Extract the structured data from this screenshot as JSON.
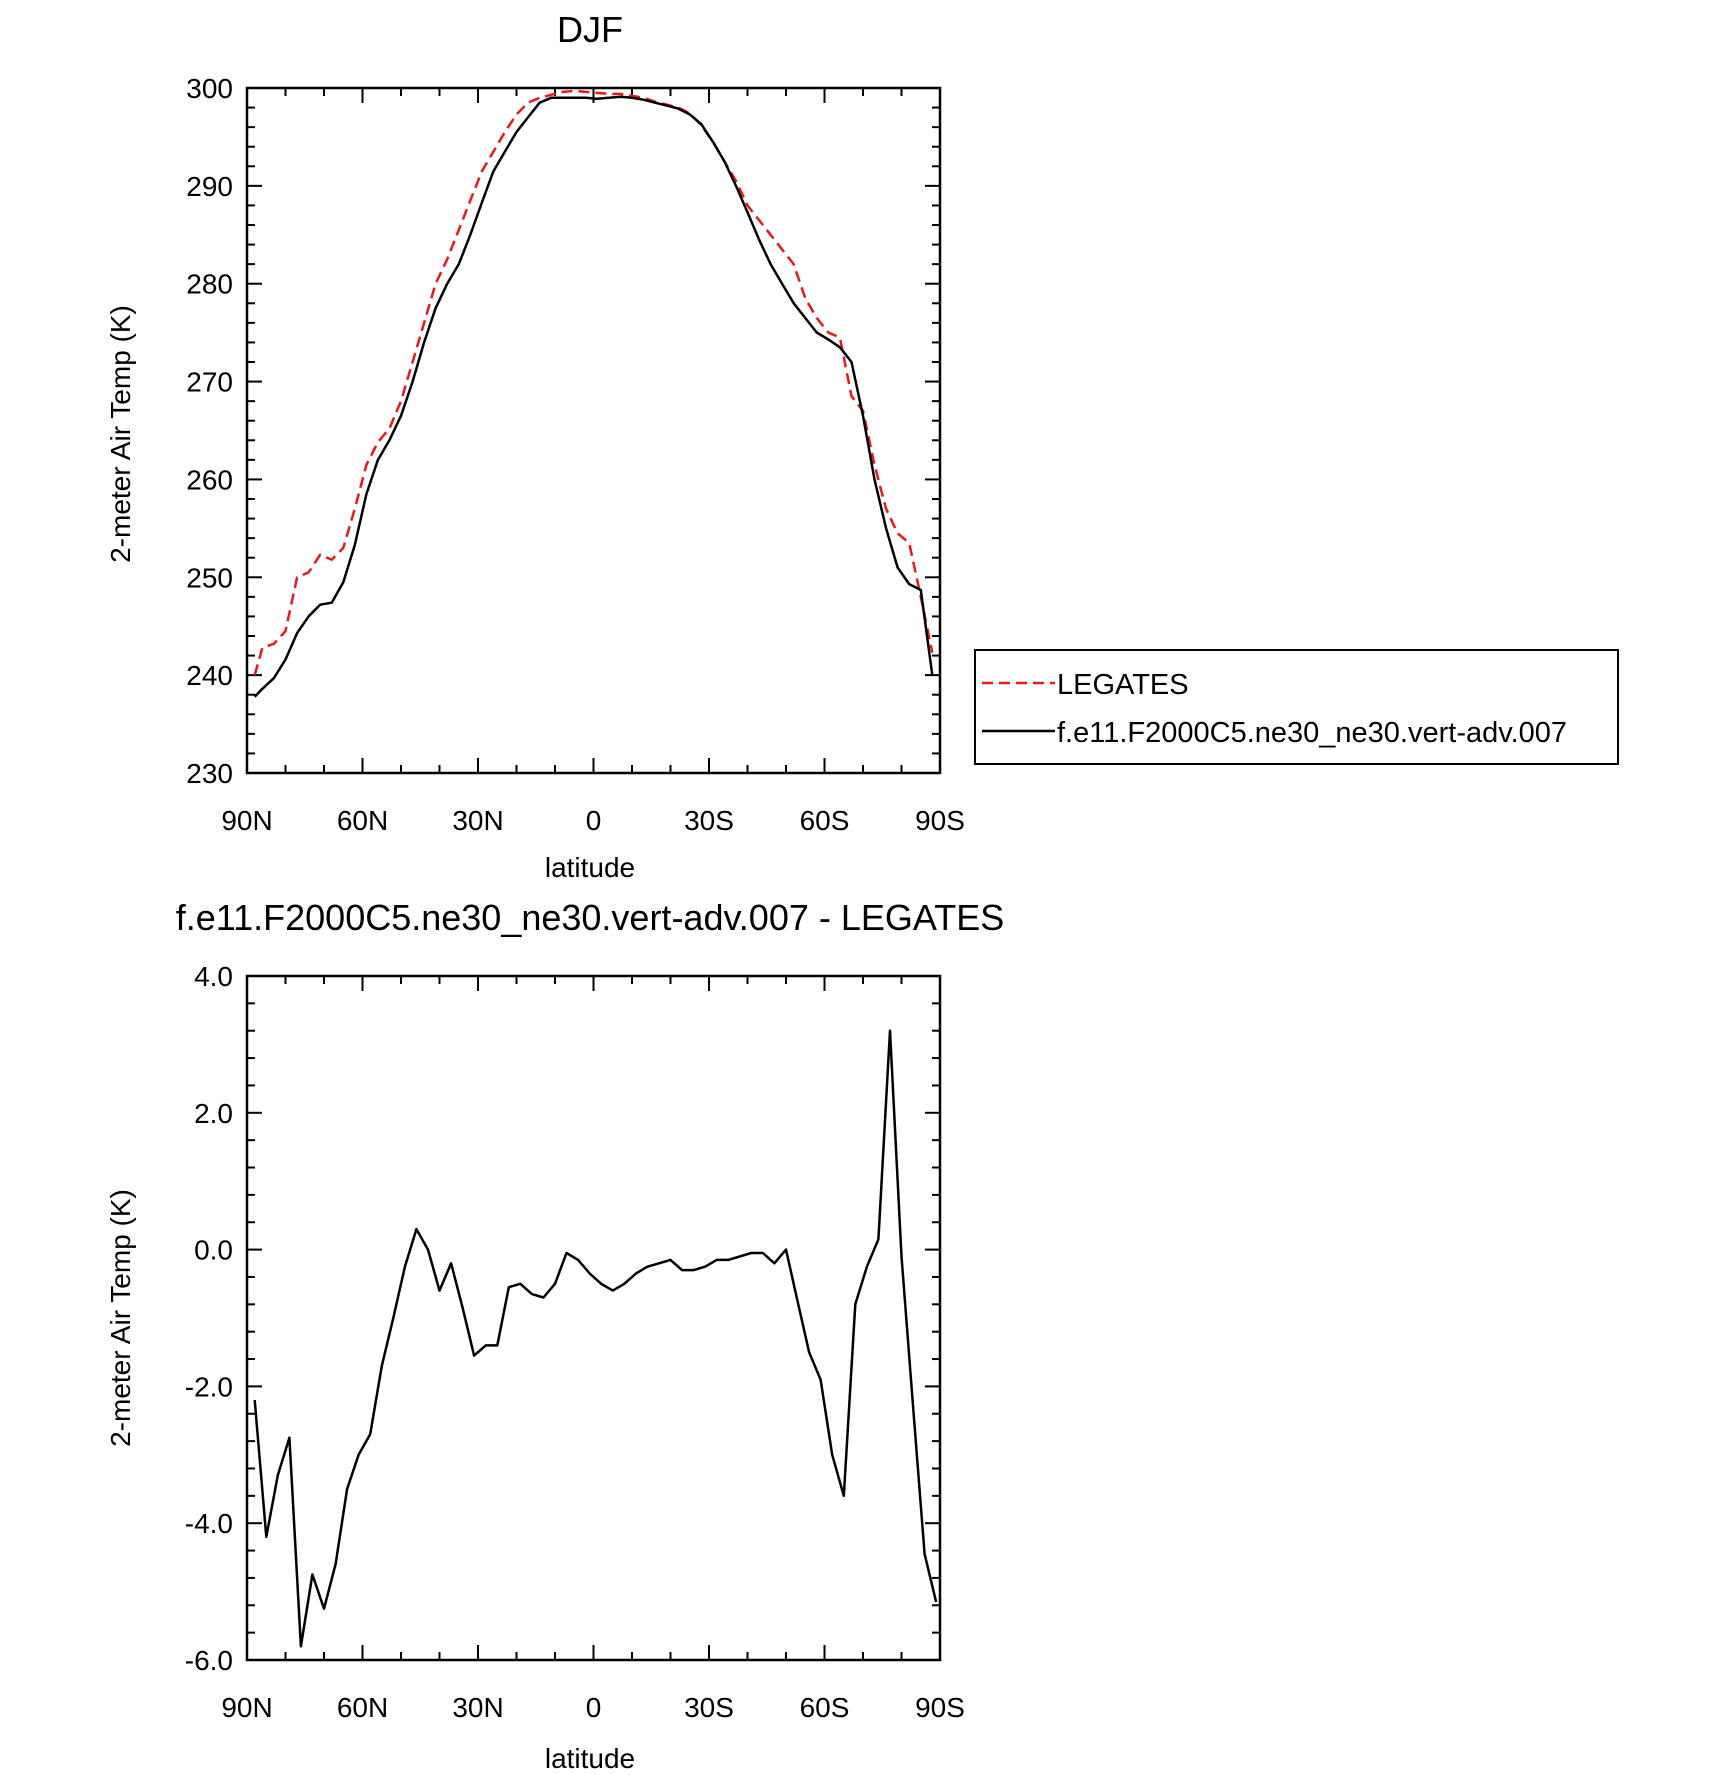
{
  "chart_data": [
    {
      "type": "line",
      "title": "DJF",
      "xlabel": "latitude",
      "ylabel": "2-meter Air Temp (K)",
      "xlim": [
        90,
        -90
      ],
      "ylim": [
        230,
        300
      ],
      "x_tick_values": [
        90,
        60,
        30,
        0,
        -30,
        -60,
        -90
      ],
      "x_tick_labels": [
        "90N",
        "60N",
        "30N",
        "0",
        "30S",
        "60S",
        "90S"
      ],
      "y_tick_values": [
        230,
        240,
        250,
        260,
        270,
        280,
        290,
        300
      ],
      "y_tick_labels": [
        "230",
        "240",
        "250",
        "260",
        "270",
        "280",
        "290",
        "300"
      ],
      "grid": false,
      "legend": "right",
      "series": [
        {
          "name": "LEGATES",
          "color": "#e41a1c",
          "style": "dashed",
          "x": [
            88,
            86,
            83,
            80,
            77,
            74,
            71,
            68,
            65,
            62,
            59,
            56,
            53,
            50,
            47,
            44,
            41,
            38,
            35,
            32,
            29,
            26,
            23,
            20,
            17,
            14,
            11,
            8,
            5,
            2,
            -1,
            -4,
            -7,
            -10,
            -13,
            -16,
            -19,
            -22,
            -25,
            -28,
            -31,
            -34,
            -37,
            -40,
            -43,
            -46,
            -49,
            -52,
            -55,
            -58,
            -61,
            -64,
            -67,
            -70,
            -73,
            -76,
            -79,
            -82,
            -85,
            -88
          ],
          "values": [
            240,
            242.8,
            243.2,
            244.5,
            250.0,
            250.5,
            252.3,
            251.8,
            253.0,
            257.0,
            261.5,
            263.8,
            265.2,
            268.0,
            272.0,
            276.0,
            280.0,
            282.5,
            285.5,
            288.5,
            291.5,
            293.5,
            295.5,
            297.3,
            298.5,
            299.0,
            299.3,
            299.6,
            299.7,
            299.6,
            299.5,
            299.4,
            299.4,
            299.2,
            299.0,
            298.6,
            298.3,
            298.0,
            297.4,
            296.2,
            294.5,
            292.5,
            290.5,
            288.0,
            286.5,
            285.0,
            283.5,
            282.0,
            278.5,
            276.5,
            275.0,
            274.5,
            268.5,
            267.0,
            261.5,
            257.0,
            254.5,
            253.5,
            248.0,
            242.3
          ]
        },
        {
          "name": "f.e11.F2000C5.ne30_ne30.vert-adv.007",
          "color": "#000000",
          "style": "solid",
          "x": [
            88,
            86,
            83,
            80,
            77,
            74,
            71,
            68,
            65,
            62,
            59,
            56,
            53,
            50,
            47,
            44,
            41,
            38,
            35,
            32,
            29,
            26,
            23,
            20,
            17,
            14,
            11,
            8,
            5,
            2,
            -1,
            -4,
            -7,
            -10,
            -13,
            -16,
            -19,
            -22,
            -25,
            -28,
            -31,
            -34,
            -37,
            -40,
            -43,
            -46,
            -49,
            -52,
            -55,
            -58,
            -61,
            -64,
            -67,
            -70,
            -73,
            -76,
            -79,
            -82,
            -85,
            -88
          ],
          "values": [
            237.8,
            238.6,
            239.7,
            241.6,
            244.3,
            246.0,
            247.2,
            247.4,
            249.5,
            253.3,
            258.5,
            262.0,
            264.0,
            266.5,
            270.0,
            274.0,
            277.5,
            280.0,
            282.0,
            285.0,
            288.3,
            291.5,
            293.5,
            295.5,
            297.0,
            298.5,
            299.0,
            299.0,
            299.0,
            299.0,
            298.9,
            299.0,
            299.1,
            299.0,
            298.8,
            298.5,
            298.2,
            297.9,
            297.3,
            296.3,
            294.5,
            292.5,
            290.0,
            287.3,
            284.5,
            282.0,
            280.0,
            278.0,
            276.5,
            275.0,
            274.3,
            273.5,
            272.0,
            266.5,
            260.0,
            255.0,
            251.0,
            249.3,
            248.7,
            240.0
          ]
        }
      ]
    },
    {
      "type": "line",
      "title": "f.e11.F2000C5.ne30_ne30.vert-adv.007 - LEGATES",
      "xlabel": "latitude",
      "ylabel": "2-meter Air Temp (K)",
      "xlim": [
        90,
        -90
      ],
      "ylim": [
        -6,
        4
      ],
      "x_tick_values": [
        90,
        60,
        30,
        0,
        -30,
        -60,
        -90
      ],
      "x_tick_labels": [
        "90N",
        "60N",
        "30N",
        "0",
        "30S",
        "60S",
        "90S"
      ],
      "y_tick_values": [
        -6,
        -4,
        -2,
        0,
        2,
        4
      ],
      "y_tick_labels": [
        "-6.0",
        "-4.0",
        "-2.0",
        "0.0",
        "2.0",
        "4.0"
      ],
      "grid": false,
      "series": [
        {
          "color": "#000000",
          "style": "solid",
          "x": [
            88,
            85,
            82,
            79,
            76,
            73,
            70,
            67,
            64,
            61,
            58,
            55,
            52,
            49,
            46,
            43,
            40,
            37,
            34,
            31,
            28,
            25,
            22,
            19,
            16,
            13,
            10,
            7,
            4,
            1,
            -2,
            -5,
            -8,
            -11,
            -14,
            -17,
            -20,
            -23,
            -26,
            -29,
            -32,
            -35,
            -38,
            -41,
            -44,
            -47,
            -50,
            -53,
            -56,
            -59,
            -62,
            -65,
            -68,
            -71,
            -74,
            -77,
            -80,
            -83,
            -86,
            -89
          ],
          "values": [
            -2.2,
            -4.2,
            -3.3,
            -2.75,
            -5.8,
            -4.75,
            -5.25,
            -4.6,
            -3.5,
            -3.0,
            -2.7,
            -1.7,
            -1.0,
            -0.25,
            0.3,
            0.0,
            -0.6,
            -0.2,
            -0.85,
            -1.55,
            -1.4,
            -1.4,
            -0.55,
            -0.5,
            -0.65,
            -0.7,
            -0.5,
            -0.05,
            -0.15,
            -0.35,
            -0.5,
            -0.6,
            -0.5,
            -0.35,
            -0.25,
            -0.2,
            -0.15,
            -0.3,
            -0.3,
            -0.25,
            -0.15,
            -0.15,
            -0.1,
            -0.05,
            -0.05,
            -0.2,
            0.0,
            -0.75,
            -1.5,
            -1.9,
            -3.0,
            -3.6,
            -0.8,
            -0.25,
            0.15,
            3.2,
            -0.1,
            -2.3,
            -4.45,
            -5.15
          ]
        }
      ]
    }
  ]
}
